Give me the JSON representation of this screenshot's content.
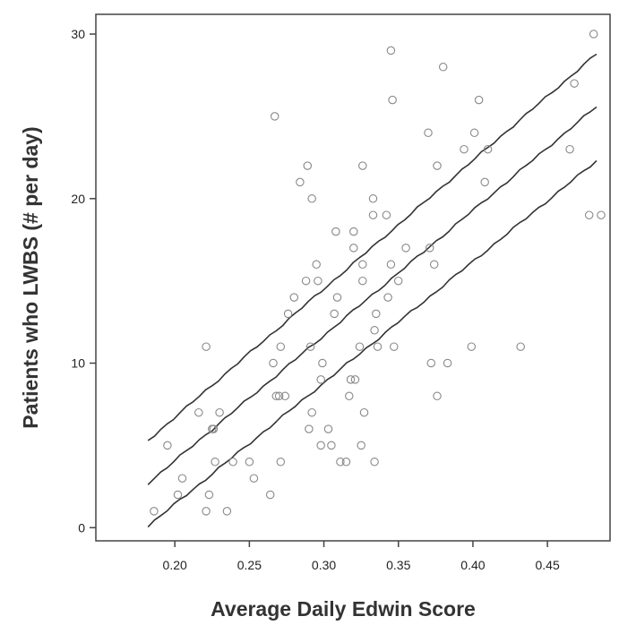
{
  "chart_data": {
    "type": "scatter",
    "xlabel": "Average Daily Edwin Score",
    "ylabel": "Patients who LWBS (# per day)",
    "xlim": [
      0.147,
      0.492
    ],
    "ylim": [
      -0.8,
      31.2
    ],
    "x_ticks": [
      0.2,
      0.25,
      0.3,
      0.35,
      0.4,
      0.45
    ],
    "x_tick_labels": [
      "0.20",
      "0.25",
      "0.30",
      "0.35",
      "0.40",
      "0.45"
    ],
    "y_ticks": [
      0,
      10,
      20,
      30
    ],
    "y_tick_labels": [
      "0",
      "10",
      "20",
      "30"
    ],
    "grid": false,
    "marker": "open-circle",
    "points": [
      {
        "x": 0.186,
        "y": 1
      },
      {
        "x": 0.195,
        "y": 5
      },
      {
        "x": 0.202,
        "y": 2
      },
      {
        "x": 0.205,
        "y": 3
      },
      {
        "x": 0.216,
        "y": 7
      },
      {
        "x": 0.221,
        "y": 11
      },
      {
        "x": 0.221,
        "y": 1
      },
      {
        "x": 0.223,
        "y": 2
      },
      {
        "x": 0.225,
        "y": 6
      },
      {
        "x": 0.226,
        "y": 6
      },
      {
        "x": 0.227,
        "y": 4
      },
      {
        "x": 0.23,
        "y": 7
      },
      {
        "x": 0.235,
        "y": 1
      },
      {
        "x": 0.239,
        "y": 4
      },
      {
        "x": 0.25,
        "y": 4
      },
      {
        "x": 0.253,
        "y": 3
      },
      {
        "x": 0.264,
        "y": 2
      },
      {
        "x": 0.266,
        "y": 10
      },
      {
        "x": 0.267,
        "y": 25
      },
      {
        "x": 0.268,
        "y": 8
      },
      {
        "x": 0.27,
        "y": 8
      },
      {
        "x": 0.271,
        "y": 4
      },
      {
        "x": 0.271,
        "y": 11
      },
      {
        "x": 0.274,
        "y": 8
      },
      {
        "x": 0.276,
        "y": 13
      },
      {
        "x": 0.28,
        "y": 14
      },
      {
        "x": 0.284,
        "y": 21
      },
      {
        "x": 0.288,
        "y": 15
      },
      {
        "x": 0.289,
        "y": 22
      },
      {
        "x": 0.29,
        "y": 6
      },
      {
        "x": 0.291,
        "y": 11
      },
      {
        "x": 0.292,
        "y": 20
      },
      {
        "x": 0.292,
        "y": 7
      },
      {
        "x": 0.295,
        "y": 16
      },
      {
        "x": 0.296,
        "y": 15
      },
      {
        "x": 0.298,
        "y": 5
      },
      {
        "x": 0.298,
        "y": 9
      },
      {
        "x": 0.299,
        "y": 10
      },
      {
        "x": 0.303,
        "y": 6
      },
      {
        "x": 0.305,
        "y": 5
      },
      {
        "x": 0.307,
        "y": 13
      },
      {
        "x": 0.308,
        "y": 18
      },
      {
        "x": 0.309,
        "y": 14
      },
      {
        "x": 0.311,
        "y": 4
      },
      {
        "x": 0.315,
        "y": 4
      },
      {
        "x": 0.317,
        "y": 8
      },
      {
        "x": 0.318,
        "y": 9
      },
      {
        "x": 0.32,
        "y": 18
      },
      {
        "x": 0.32,
        "y": 17
      },
      {
        "x": 0.321,
        "y": 9
      },
      {
        "x": 0.324,
        "y": 11
      },
      {
        "x": 0.325,
        "y": 5
      },
      {
        "x": 0.326,
        "y": 22
      },
      {
        "x": 0.326,
        "y": 16
      },
      {
        "x": 0.326,
        "y": 15
      },
      {
        "x": 0.327,
        "y": 7
      },
      {
        "x": 0.333,
        "y": 20
      },
      {
        "x": 0.333,
        "y": 19
      },
      {
        "x": 0.334,
        "y": 12
      },
      {
        "x": 0.334,
        "y": 4
      },
      {
        "x": 0.335,
        "y": 13
      },
      {
        "x": 0.336,
        "y": 11
      },
      {
        "x": 0.342,
        "y": 19
      },
      {
        "x": 0.343,
        "y": 14
      },
      {
        "x": 0.345,
        "y": 29
      },
      {
        "x": 0.345,
        "y": 16
      },
      {
        "x": 0.346,
        "y": 26
      },
      {
        "x": 0.347,
        "y": 11
      },
      {
        "x": 0.35,
        "y": 15
      },
      {
        "x": 0.355,
        "y": 17
      },
      {
        "x": 0.37,
        "y": 24
      },
      {
        "x": 0.371,
        "y": 17
      },
      {
        "x": 0.372,
        "y": 10
      },
      {
        "x": 0.374,
        "y": 16
      },
      {
        "x": 0.376,
        "y": 22
      },
      {
        "x": 0.376,
        "y": 8
      },
      {
        "x": 0.38,
        "y": 28
      },
      {
        "x": 0.383,
        "y": 10
      },
      {
        "x": 0.394,
        "y": 23
      },
      {
        "x": 0.399,
        "y": 11
      },
      {
        "x": 0.401,
        "y": 24
      },
      {
        "x": 0.404,
        "y": 26
      },
      {
        "x": 0.408,
        "y": 21
      },
      {
        "x": 0.41,
        "y": 23
      },
      {
        "x": 0.432,
        "y": 11
      },
      {
        "x": 0.465,
        "y": 23
      },
      {
        "x": 0.468,
        "y": 27
      },
      {
        "x": 0.478,
        "y": 19
      },
      {
        "x": 0.481,
        "y": 30
      },
      {
        "x": 0.486,
        "y": 19
      }
    ],
    "lines": [
      {
        "role": "upper-bound",
        "x": [
          0.182,
          0.483
        ],
        "y": [
          5.3,
          28.8
        ]
      },
      {
        "role": "fit",
        "x": [
          0.182,
          0.483
        ],
        "y": [
          2.7,
          25.6
        ]
      },
      {
        "role": "lower-bound",
        "x": [
          0.182,
          0.483
        ],
        "y": [
          0.1,
          22.3
        ]
      }
    ],
    "colors": {
      "marker_stroke": "#888888",
      "line": "#333333",
      "axis": "#444444",
      "background": "#ffffff"
    }
  }
}
